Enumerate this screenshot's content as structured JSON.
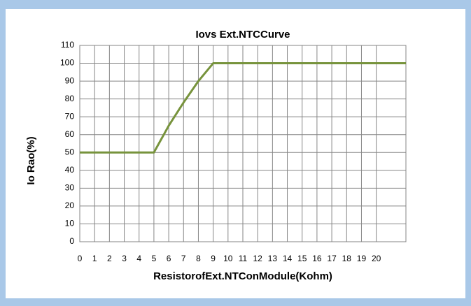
{
  "chart_data": {
    "type": "line",
    "title": "Iovs Ext.NTCCurve",
    "x_label": "ResistorofExt.NTConModule(Kohm)",
    "y_label": "Io Rao(%)",
    "x": [
      0,
      5,
      6,
      7,
      8,
      9,
      22
    ],
    "values": [
      50,
      50,
      65,
      78,
      90,
      100,
      100
    ],
    "color": "#77933c",
    "xlim": [
      0,
      22
    ],
    "xticks": [
      0,
      1,
      2,
      3,
      4,
      5,
      6,
      7,
      8,
      9,
      10,
      11,
      12,
      13,
      14,
      15,
      16,
      17,
      18,
      19,
      20
    ],
    "ylim": [
      0,
      110
    ],
    "yticks": [
      0,
      10,
      20,
      30,
      40,
      50,
      60,
      70,
      80,
      90,
      100,
      110
    ],
    "grid": true
  }
}
